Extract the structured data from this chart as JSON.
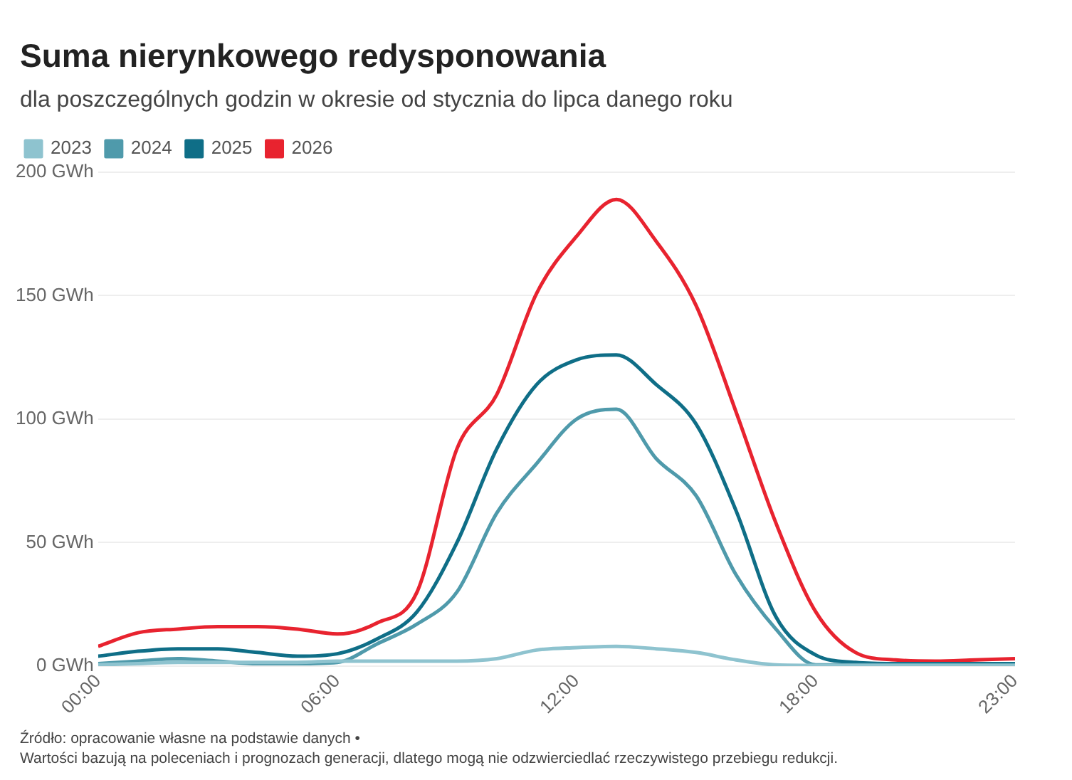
{
  "chart_data": {
    "type": "line",
    "title": "Suma nierynkowego redysponowania",
    "subtitle": "dla poszczególnych godzin w okresie od stycznia do lipca danego roku",
    "x": [
      0,
      1,
      2,
      3,
      4,
      5,
      6,
      7,
      8,
      9,
      10,
      11,
      12,
      13,
      14,
      15,
      16,
      17,
      18,
      19,
      20,
      21,
      22,
      23
    ],
    "series": [
      {
        "name": "2023",
        "color": "#8ec3cf",
        "values": [
          0.5,
          1,
          1.5,
          1.5,
          1.5,
          1.5,
          2,
          2,
          2,
          2,
          3,
          6.5,
          7.5,
          8,
          7,
          5.5,
          2.5,
          0.5,
          0.3,
          0.3,
          0.3,
          0.3,
          0.3,
          0.3
        ]
      },
      {
        "name": "2024",
        "color": "#4f9aab",
        "values": [
          1,
          2,
          3,
          2,
          1,
          1,
          1.5,
          9,
          17,
          30,
          62,
          82,
          100,
          104,
          84,
          69,
          37,
          15,
          0.5,
          0.5,
          0.5,
          0.5,
          0.5,
          0.5
        ]
      },
      {
        "name": "2025",
        "color": "#0f6e87",
        "values": [
          4,
          6,
          7,
          7,
          5.5,
          4,
          5,
          11,
          22,
          50,
          88,
          114,
          124,
          126,
          114,
          98,
          63,
          20,
          4.5,
          1.5,
          1,
          1,
          1,
          1
        ]
      },
      {
        "name": "2026",
        "color": "#e8232f",
        "values": [
          8,
          13.5,
          15,
          16,
          16,
          15,
          13,
          17.5,
          30,
          88,
          110,
          151,
          174,
          189,
          172,
          146,
          103,
          58,
          22,
          5.5,
          2.5,
          2,
          2.5,
          3
        ]
      }
    ],
    "xlim": [
      0,
      23
    ],
    "xticks": [
      {
        "value": 0,
        "label": "00:00"
      },
      {
        "value": 6,
        "label": "06:00"
      },
      {
        "value": 12,
        "label": "12:00"
      },
      {
        "value": 18,
        "label": "18:00"
      },
      {
        "value": 23,
        "label": "23:00"
      }
    ],
    "ylim": [
      0,
      200
    ],
    "yticks": [
      {
        "value": 0,
        "label": "0 GWh"
      },
      {
        "value": 50,
        "label": "50 GWh"
      },
      {
        "value": 100,
        "label": "100 GWh"
      },
      {
        "value": 150,
        "label": "150 GWh"
      },
      {
        "value": 200,
        "label": "200 GWh"
      }
    ],
    "grid": "y",
    "legend": "top left",
    "marker": "none",
    "line_style": "solid",
    "annotations": [
      "Źródło: opracowanie własne na podstawie danych •",
      "Wartości bazują na poleceniach i prognozach generacji, dlatego mogą nie odzwierciedlać rzeczywistego przebiegu redukcji."
    ]
  }
}
